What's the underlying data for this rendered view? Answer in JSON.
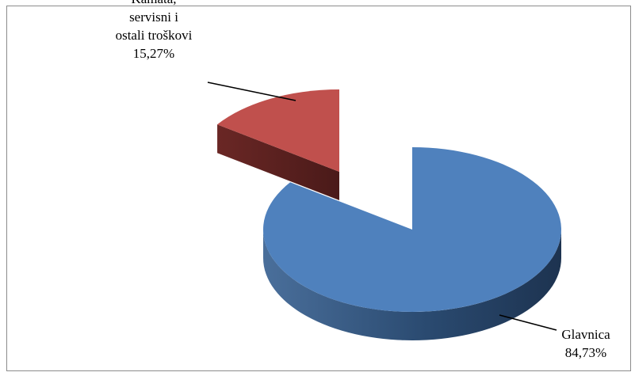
{
  "chart_data": {
    "type": "pie",
    "style": "3d-exploded",
    "title": "",
    "slices": [
      {
        "name": "Glavnica",
        "value": 84.73,
        "value_label": "84,73%",
        "label_lines": [
          "Glavnica"
        ],
        "color_top": "#4f81bd",
        "color_side": "#2c4d75"
      },
      {
        "name": "Kamata, servisni i ostali troškovi",
        "value": 15.27,
        "value_label": "15,27%",
        "label_lines": [
          "Kamata,",
          "servisni i",
          "ostali troškovi"
        ],
        "color_top": "#c0504d",
        "color_side": "#5e2220"
      }
    ],
    "legend": "none",
    "data_labels": "outside-with-leader-lines"
  }
}
